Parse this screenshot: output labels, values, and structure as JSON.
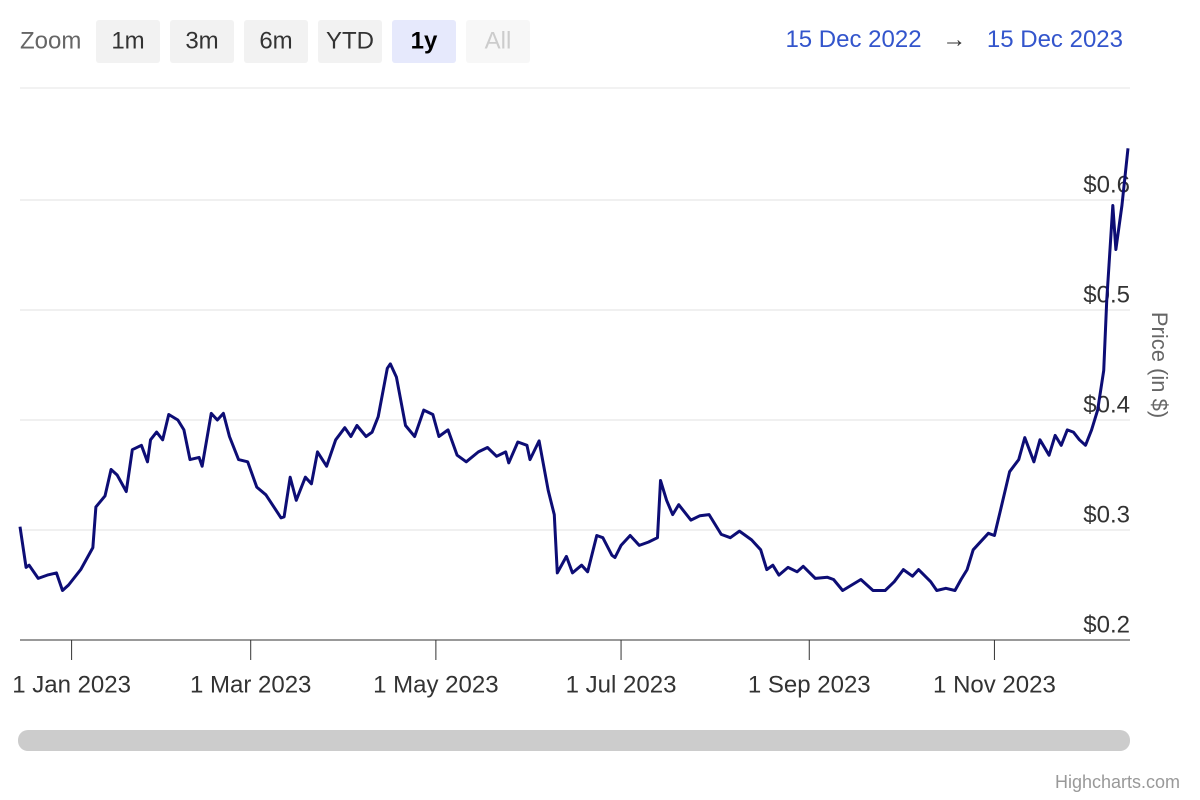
{
  "range_selector": {
    "label": "Zoom",
    "buttons": [
      {
        "text": "1m",
        "state": "normal"
      },
      {
        "text": "3m",
        "state": "normal"
      },
      {
        "text": "6m",
        "state": "normal"
      },
      {
        "text": "YTD",
        "state": "normal"
      },
      {
        "text": "1y",
        "state": "selected"
      },
      {
        "text": "All",
        "state": "disabled"
      }
    ]
  },
  "date_range": {
    "from": "15 Dec 2022",
    "separator": "→",
    "to": "15 Dec 2023"
  },
  "credits": "Highcharts.com",
  "chart_data": {
    "type": "line",
    "y_label": "Price (in $)",
    "color": "#0d0d75",
    "grid": true,
    "xlim": [
      "2022-12-15",
      "2023-12-15"
    ],
    "xticks": [
      {
        "value": "2023-01-01",
        "label": "1 Jan 2023"
      },
      {
        "value": "2023-03-01",
        "label": "1 Mar 2023"
      },
      {
        "value": "2023-05-01",
        "label": "1 May 2023"
      },
      {
        "value": "2023-07-01",
        "label": "1 Jul 2023"
      },
      {
        "value": "2023-09-01",
        "label": "1 Sep 2023"
      },
      {
        "value": "2023-11-01",
        "label": "1 Nov 2023"
      }
    ],
    "ylim": [
      0.2,
      0.7
    ],
    "yticks": [
      {
        "value": 0.2,
        "label": "$0.2"
      },
      {
        "value": 0.3,
        "label": "$0.3"
      },
      {
        "value": 0.4,
        "label": "$0.4"
      },
      {
        "value": 0.5,
        "label": "$0.5"
      },
      {
        "value": 0.6,
        "label": "$0.6"
      }
    ],
    "x": [
      "2022-12-15",
      "2022-12-17",
      "2022-12-18",
      "2022-12-21",
      "2022-12-24",
      "2022-12-27",
      "2022-12-29",
      "2022-12-31",
      "2023-01-04",
      "2023-01-08",
      "2023-01-09",
      "2023-01-12",
      "2023-01-14",
      "2023-01-16",
      "2023-01-19",
      "2023-01-21",
      "2023-01-24",
      "2023-01-26",
      "2023-01-27",
      "2023-01-29",
      "2023-01-31",
      "2023-02-02",
      "2023-02-05",
      "2023-02-07",
      "2023-02-09",
      "2023-02-12",
      "2023-02-13",
      "2023-02-16",
      "2023-02-18",
      "2023-02-20",
      "2023-02-22",
      "2023-02-25",
      "2023-02-28",
      "2023-03-03",
      "2023-03-06",
      "2023-03-11",
      "2023-03-12",
      "2023-03-14",
      "2023-03-16",
      "2023-03-19",
      "2023-03-21",
      "2023-03-23",
      "2023-03-26",
      "2023-03-29",
      "2023-04-01",
      "2023-04-03",
      "2023-04-05",
      "2023-04-08",
      "2023-04-10",
      "2023-04-12",
      "2023-04-15",
      "2023-04-16",
      "2023-04-18",
      "2023-04-21",
      "2023-04-24",
      "2023-04-27",
      "2023-04-30",
      "2023-05-02",
      "2023-05-05",
      "2023-05-08",
      "2023-05-11",
      "2023-05-15",
      "2023-05-18",
      "2023-05-21",
      "2023-05-24",
      "2023-05-25",
      "2023-05-28",
      "2023-05-31",
      "2023-06-01",
      "2023-06-04",
      "2023-06-07",
      "2023-06-09",
      "2023-06-10",
      "2023-06-13",
      "2023-06-15",
      "2023-06-18",
      "2023-06-20",
      "2023-06-23",
      "2023-06-25",
      "2023-06-28",
      "2023-06-29",
      "2023-07-01",
      "2023-07-04",
      "2023-07-07",
      "2023-07-10",
      "2023-07-13",
      "2023-07-14",
      "2023-07-16",
      "2023-07-18",
      "2023-07-20",
      "2023-07-24",
      "2023-07-27",
      "2023-07-30",
      "2023-08-03",
      "2023-08-06",
      "2023-08-09",
      "2023-08-13",
      "2023-08-16",
      "2023-08-18",
      "2023-08-20",
      "2023-08-22",
      "2023-08-25",
      "2023-08-28",
      "2023-08-30",
      "2023-09-03",
      "2023-09-07",
      "2023-09-09",
      "2023-09-12",
      "2023-09-15",
      "2023-09-18",
      "2023-09-22",
      "2023-09-26",
      "2023-09-29",
      "2023-10-02",
      "2023-10-05",
      "2023-10-07",
      "2023-10-11",
      "2023-10-13",
      "2023-10-16",
      "2023-10-19",
      "2023-10-21",
      "2023-10-23",
      "2023-10-25",
      "2023-10-27",
      "2023-10-30",
      "2023-11-01",
      "2023-11-03",
      "2023-11-06",
      "2023-11-09",
      "2023-11-11",
      "2023-11-14",
      "2023-11-16",
      "2023-11-19",
      "2023-11-21",
      "2023-11-23",
      "2023-11-25",
      "2023-11-27",
      "2023-11-29",
      "2023-12-01",
      "2023-12-03",
      "2023-12-05",
      "2023-12-07",
      "2023-12-08",
      "2023-12-10",
      "2023-12-11",
      "2023-12-13",
      "2023-12-15"
    ],
    "series": [
      {
        "name": "Price",
        "values": [
          0.303,
          0.266,
          0.268,
          0.256,
          0.259,
          0.261,
          0.245,
          0.25,
          0.264,
          0.284,
          0.321,
          0.331,
          0.355,
          0.35,
          0.335,
          0.373,
          0.377,
          0.362,
          0.382,
          0.389,
          0.382,
          0.405,
          0.4,
          0.391,
          0.364,
          0.366,
          0.358,
          0.406,
          0.4,
          0.406,
          0.385,
          0.364,
          0.362,
          0.339,
          0.332,
          0.311,
          0.312,
          0.348,
          0.327,
          0.348,
          0.342,
          0.371,
          0.358,
          0.382,
          0.393,
          0.385,
          0.395,
          0.385,
          0.389,
          0.403,
          0.447,
          0.451,
          0.439,
          0.395,
          0.385,
          0.409,
          0.405,
          0.385,
          0.391,
          0.368,
          0.362,
          0.371,
          0.375,
          0.367,
          0.371,
          0.361,
          0.38,
          0.377,
          0.364,
          0.381,
          0.336,
          0.314,
          0.261,
          0.276,
          0.261,
          0.268,
          0.262,
          0.295,
          0.293,
          0.277,
          0.275,
          0.286,
          0.295,
          0.286,
          0.289,
          0.293,
          0.345,
          0.327,
          0.314,
          0.323,
          0.309,
          0.313,
          0.314,
          0.296,
          0.293,
          0.299,
          0.291,
          0.282,
          0.264,
          0.268,
          0.259,
          0.266,
          0.262,
          0.267,
          0.256,
          0.257,
          0.255,
          0.245,
          0.25,
          0.255,
          0.245,
          0.245,
          0.253,
          0.264,
          0.258,
          0.264,
          0.253,
          0.245,
          0.247,
          0.245,
          0.255,
          0.264,
          0.282,
          0.288,
          0.297,
          0.295,
          0.318,
          0.353,
          0.364,
          0.384,
          0.362,
          0.382,
          0.368,
          0.386,
          0.377,
          0.391,
          0.389,
          0.382,
          0.377,
          0.391,
          0.409,
          0.445,
          0.509,
          0.595,
          0.555,
          0.595,
          0.647
        ]
      }
    ]
  }
}
